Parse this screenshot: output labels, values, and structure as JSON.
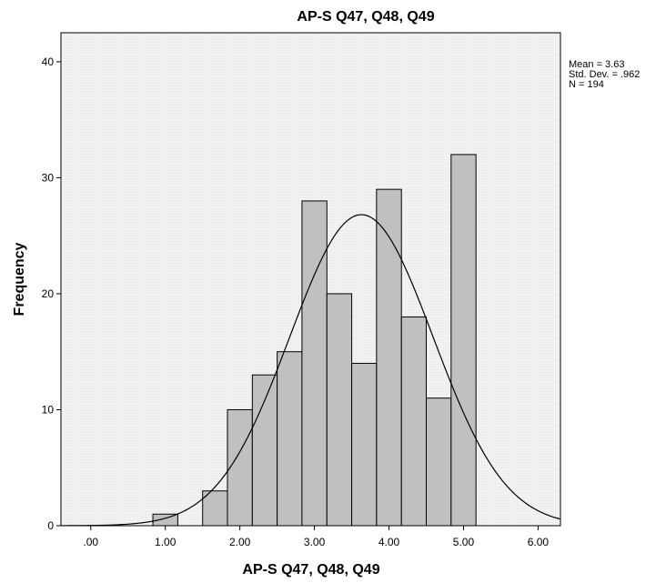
{
  "chart_data": {
    "type": "bar",
    "title": "AP-S Q47, Q48, Q49",
    "xlabel": "AP-S Q47, Q48, Q49",
    "ylabel": "Frequency",
    "bin_width": 0.3333,
    "bins": [
      {
        "x_start": 0.833,
        "x_end": 1.167,
        "frequency": 1
      },
      {
        "x_start": 1.167,
        "x_end": 1.5,
        "frequency": 0
      },
      {
        "x_start": 1.5,
        "x_end": 1.833,
        "frequency": 3
      },
      {
        "x_start": 1.833,
        "x_end": 2.167,
        "frequency": 10
      },
      {
        "x_start": 2.167,
        "x_end": 2.5,
        "frequency": 13
      },
      {
        "x_start": 2.5,
        "x_end": 2.833,
        "frequency": 15
      },
      {
        "x_start": 2.833,
        "x_end": 3.167,
        "frequency": 28
      },
      {
        "x_start": 3.167,
        "x_end": 3.5,
        "frequency": 20
      },
      {
        "x_start": 3.5,
        "x_end": 3.833,
        "frequency": 14
      },
      {
        "x_start": 3.833,
        "x_end": 4.167,
        "frequency": 29
      },
      {
        "x_start": 4.167,
        "x_end": 4.5,
        "frequency": 18
      },
      {
        "x_start": 4.5,
        "x_end": 4.833,
        "frequency": 11
      },
      {
        "x_start": 4.833,
        "x_end": 5.167,
        "frequency": 32
      }
    ],
    "normal_curve": {
      "mean": 3.63,
      "std_dev": 0.962,
      "n": 194
    },
    "xlim": [
      -0.4,
      6.3
    ],
    "ylim": [
      0,
      42.5
    ],
    "x_ticks": [
      {
        "value": 0,
        "label": ".00"
      },
      {
        "value": 1,
        "label": "1.00"
      },
      {
        "value": 2,
        "label": "2.00"
      },
      {
        "value": 3,
        "label": "3.00"
      },
      {
        "value": 4,
        "label": "4.00"
      },
      {
        "value": 5,
        "label": "5.00"
      },
      {
        "value": 6,
        "label": "6.00"
      }
    ],
    "y_ticks": [
      {
        "value": 0,
        "label": "0"
      },
      {
        "value": 10,
        "label": "10"
      },
      {
        "value": 20,
        "label": "20"
      },
      {
        "value": 30,
        "label": "30"
      },
      {
        "value": 40,
        "label": "40"
      }
    ],
    "grid": false,
    "stats": {
      "mean_text": "Mean = 3.63",
      "std_text": "Std. Dev. = .962",
      "n_text": "N = 194"
    },
    "colors": {
      "bar_fill": "#c0c0c0",
      "bar_stroke": "#000000",
      "plot_background": "#efefef",
      "curve": "#000000"
    }
  }
}
